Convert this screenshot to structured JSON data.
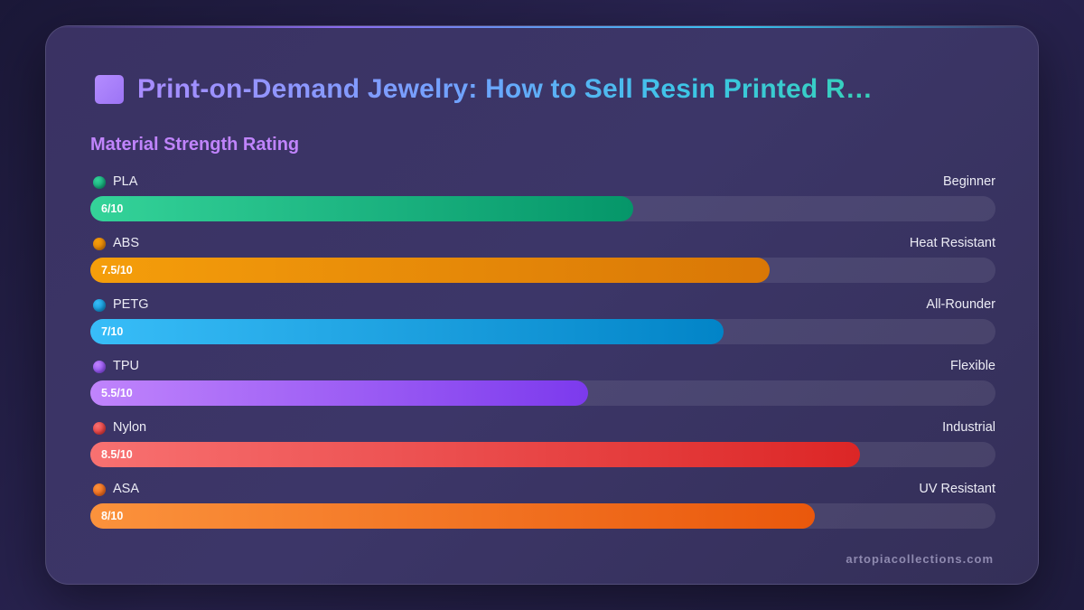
{
  "header": {
    "title": "Print-on-Demand Jewelry: How to Sell Resin Printed R…"
  },
  "chart_data": {
    "type": "bar",
    "orientation": "horizontal",
    "title": "Material Strength Rating",
    "xlim": [
      0,
      10
    ],
    "categories": [
      "PLA",
      "ABS",
      "PETG",
      "TPU",
      "Nylon",
      "ASA"
    ],
    "values": [
      6,
      7.5,
      7,
      5.5,
      8.5,
      8
    ],
    "value_labels": [
      "6/10",
      "7.5/10",
      "7/10",
      "5.5/10",
      "8.5/10",
      "8/10"
    ],
    "tags": [
      "Beginner",
      "Heat Resistant",
      "All-Rounder",
      "Flexible",
      "Industrial",
      "UV Resistant"
    ],
    "colors": [
      [
        "#34d399",
        "#059669"
      ],
      [
        "#f59e0b",
        "#d97706"
      ],
      [
        "#38bdf8",
        "#0284c7"
      ],
      [
        "#c084fc",
        "#7c3aed"
      ],
      [
        "#f87171",
        "#dc2626"
      ],
      [
        "#fb923c",
        "#ea580c"
      ]
    ],
    "grid": false,
    "legend": "none"
  },
  "footer": {
    "site": "artopiacollections.com"
  }
}
